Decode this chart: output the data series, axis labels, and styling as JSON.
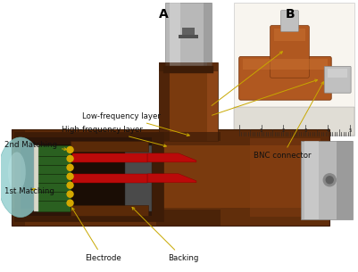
{
  "figsize": [
    4.01,
    3.05
  ],
  "dpi": 100,
  "bg_color": "#ffffff",
  "panel_A_label": "A",
  "panel_B_label": "B",
  "label_fontsize": 10,
  "ann_fontsize": 6.2,
  "ann_color": "#111111",
  "arrow_color": "#c8a800",
  "bnc_label": "BNC connector",
  "body_brown": "#7a3a0e",
  "body_brown_dark": "#3d1c07",
  "body_brown_mid": "#5a2a08",
  "metal_silver": "#b8b8b8",
  "metal_light": "#d8d8d8",
  "metal_dark": "#888888",
  "green_pcb": "#2a6020",
  "red_layer": "#bb0a0a",
  "teal_lens": "#90cece",
  "gold_dot": "#d4a800",
  "backing_gray": "#4a4a4a",
  "cavity_dark": "#1a0d05",
  "interior_brown": "#2d1508"
}
